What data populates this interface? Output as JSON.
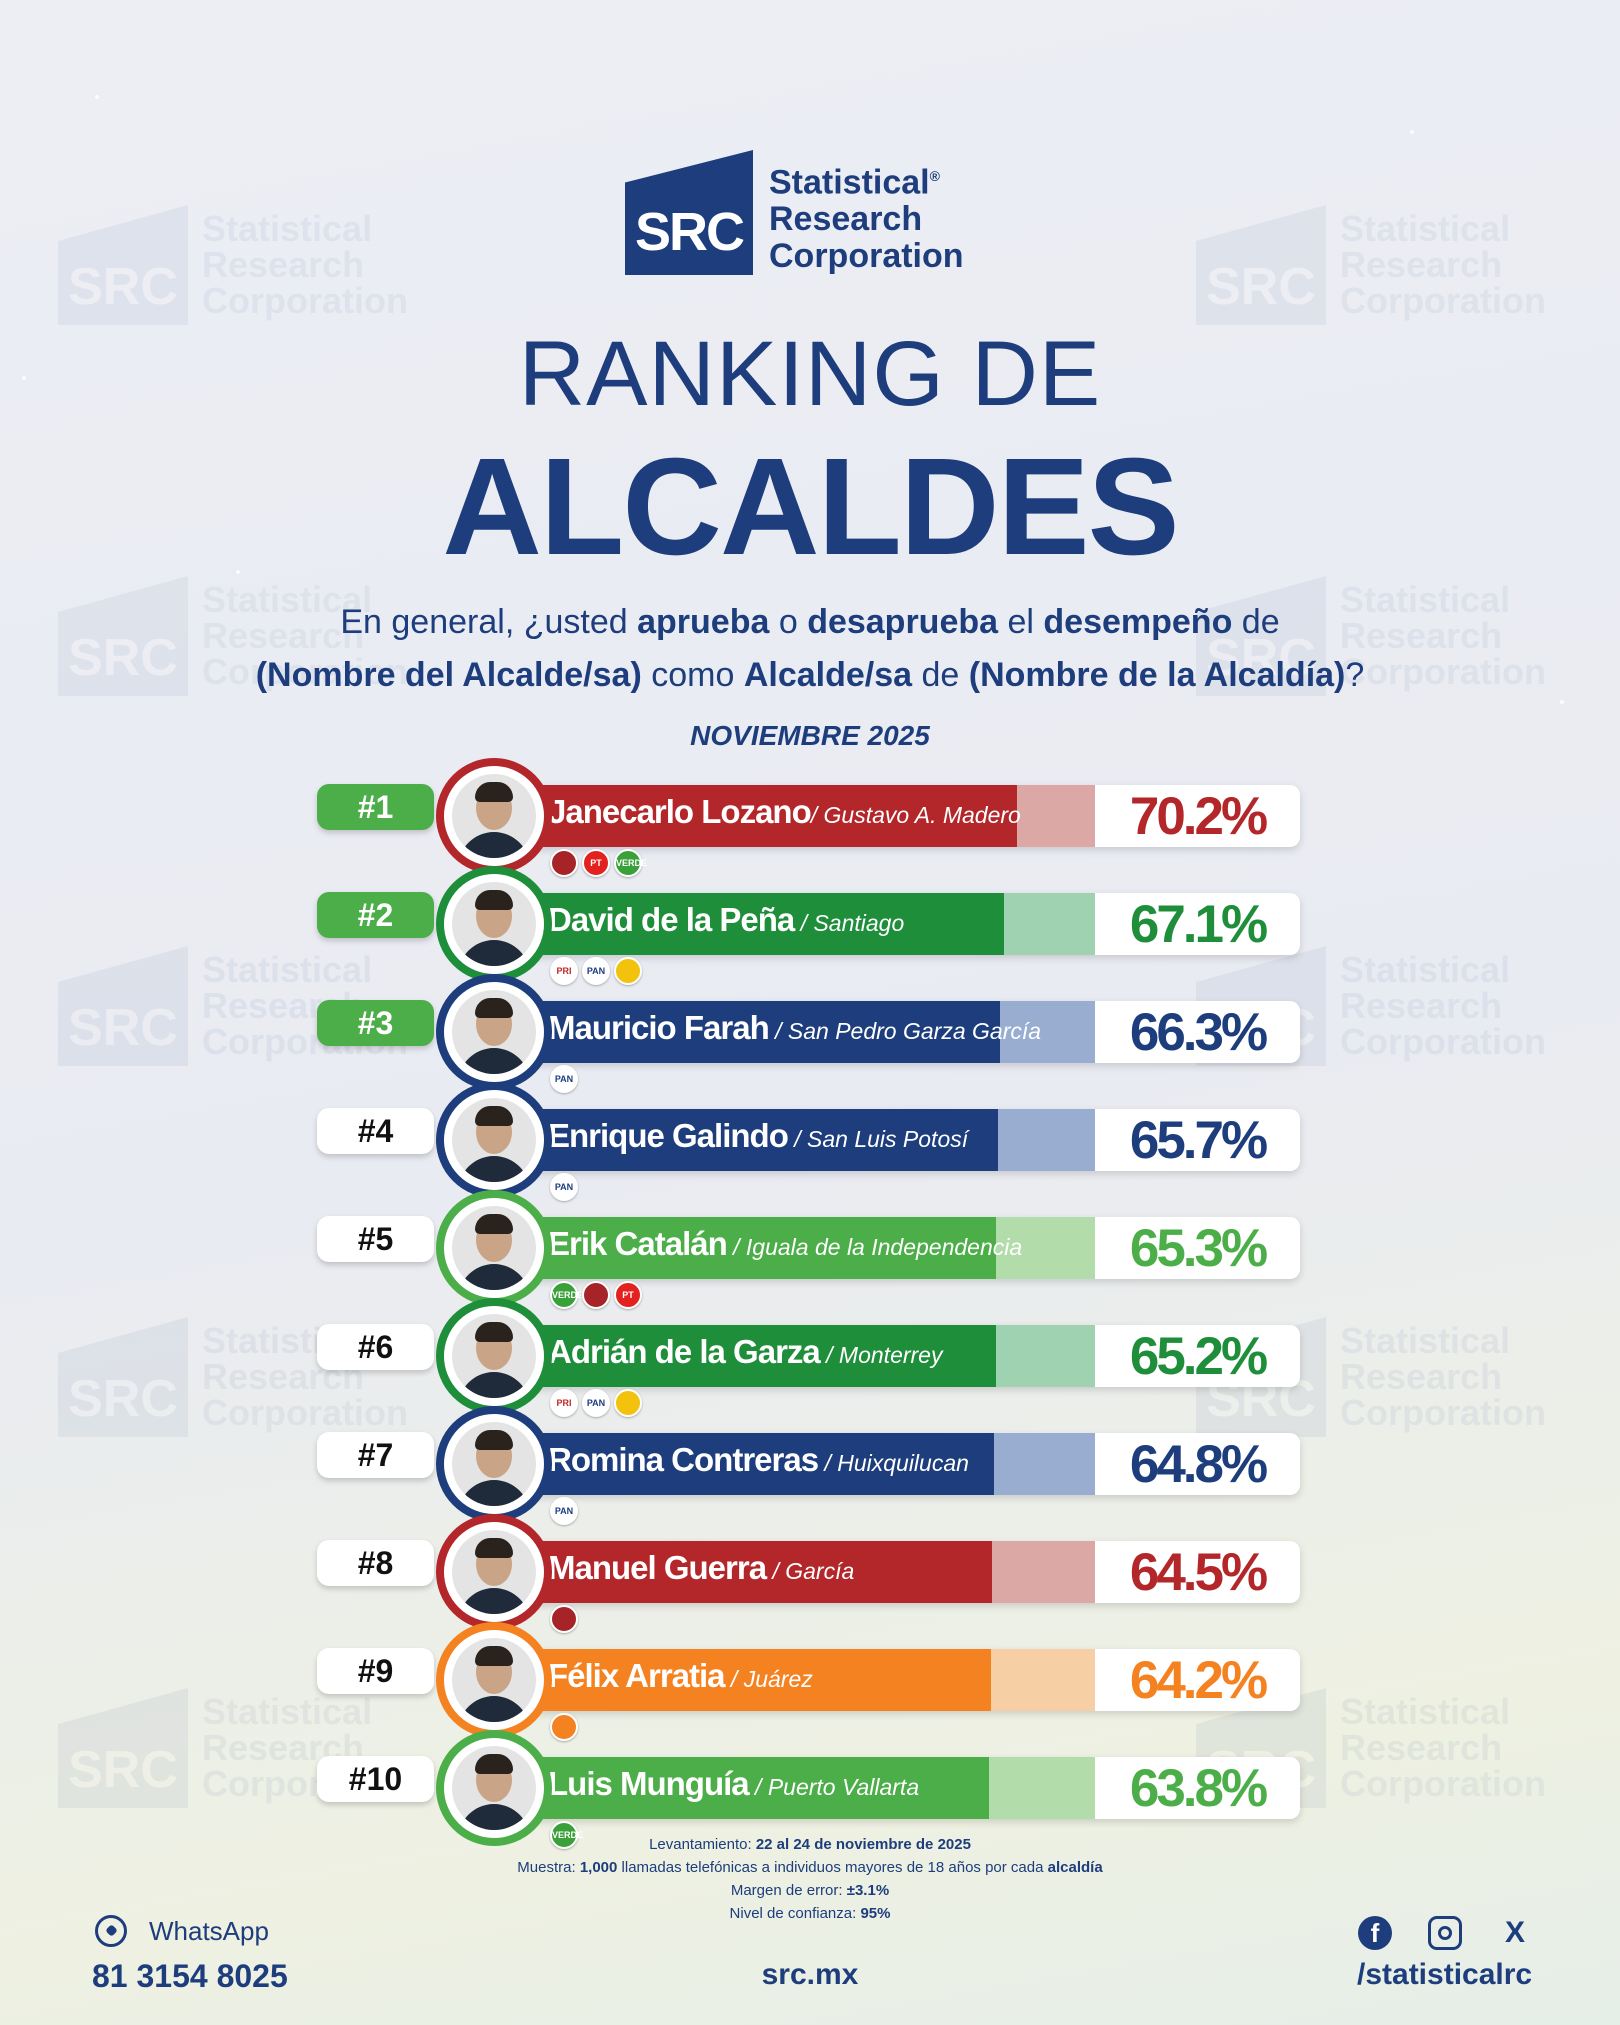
{
  "logo": {
    "badge": "SRC",
    "line1": "Statistical",
    "reg": "®",
    "line2": "Research",
    "line3": "Corporation"
  },
  "watermark": {
    "badge": "SRC",
    "line1": "Statistical",
    "line2": "Research",
    "line3": "Corporation"
  },
  "title": {
    "line1": "RANKING DE",
    "line2": "ALCALDES"
  },
  "question": {
    "p1": "En general, ¿usted ",
    "b1": "aprueba",
    "p2": " o ",
    "b2": "desaprueba",
    "p3": " el ",
    "b3": "desempeño",
    "p4": " de",
    "b4": "(Nombre del Alcalde/sa)",
    "p5": " como ",
    "b5": "Alcalde/sa",
    "p6": " de ",
    "b6": "(Nombre de la Alcaldía)",
    "p7": "?"
  },
  "month": "NOVIEMBRE 2025",
  "colors": {
    "morena_red": "#b3262a",
    "green_dark": "#1f8e3b",
    "green_light": "#4cae48",
    "blue": "#1d3d7c",
    "orange": "#f58220"
  },
  "chart_data": {
    "type": "bar",
    "title": "RANKING DE ALCALDES",
    "subtitle": "NOVIEMBRE 2025",
    "unit": "%",
    "ylim": [
      0,
      100
    ],
    "rows": [
      {
        "rank": "#1",
        "name": "Janecarlo Lozano",
        "city": "/ Gustavo A. Madero",
        "value": 70.2,
        "label": "70.2%",
        "color": "#b3262a",
        "light": "#dca8a6",
        "pct_color": "#b3262a",
        "top": true,
        "parties": [
          "morena",
          "pt",
          "verde"
        ]
      },
      {
        "rank": "#2",
        "name": "David de la Peña",
        "city": " / Santiago",
        "value": 67.1,
        "label": "67.1%",
        "color": "#1f8e3b",
        "light": "#9fd2b1",
        "pct_color": "#1f8e3b",
        "top": true,
        "parties": [
          "pri",
          "pan",
          "prd"
        ]
      },
      {
        "rank": "#3",
        "name": "Mauricio Farah",
        "city": " / San Pedro Garza García",
        "value": 66.3,
        "label": "66.3%",
        "color": "#1d3d7c",
        "light": "#98add0",
        "pct_color": "#1d3d7c",
        "top": true,
        "parties": [
          "pan"
        ]
      },
      {
        "rank": "#4",
        "name": "Enrique Galindo",
        "city": " / San Luis Potosí",
        "value": 65.7,
        "label": "65.7%",
        "color": "#1d3d7c",
        "light": "#98add0",
        "pct_color": "#1d3d7c",
        "top": false,
        "parties": [
          "pan"
        ]
      },
      {
        "rank": "#5",
        "name": "Erik Catalán",
        "city": " / Iguala de la Independencia",
        "value": 65.3,
        "label": "65.3%",
        "color": "#4cae48",
        "light": "#b3dcab",
        "pct_color": "#4cae48",
        "top": false,
        "parties": [
          "verde",
          "morena",
          "pt"
        ]
      },
      {
        "rank": "#6",
        "name": "Adrián de la Garza",
        "city": " / Monterrey",
        "value": 65.2,
        "label": "65.2%",
        "color": "#1f8e3b",
        "light": "#9fd2b1",
        "pct_color": "#1f8e3b",
        "top": false,
        "parties": [
          "pri",
          "pan",
          "prd"
        ]
      },
      {
        "rank": "#7",
        "name": "Romina Contreras",
        "city": " / Huixquilucan",
        "value": 64.8,
        "label": "64.8%",
        "color": "#1d3d7c",
        "light": "#98add0",
        "pct_color": "#1d3d7c",
        "top": false,
        "parties": [
          "pan"
        ]
      },
      {
        "rank": "#8",
        "name": "Manuel Guerra",
        "city": " / García",
        "value": 64.5,
        "label": "64.5%",
        "color": "#b3262a",
        "light": "#dca8a6",
        "pct_color": "#b3262a",
        "top": false,
        "parties": [
          "morena"
        ]
      },
      {
        "rank": "#9",
        "name": "Félix Arratia",
        "city": " / Juárez",
        "value": 64.2,
        "label": "64.2%",
        "color": "#f58220",
        "light": "#f7cfa4",
        "pct_color": "#f58220",
        "top": false,
        "parties": [
          "mc"
        ]
      },
      {
        "rank": "#10",
        "name": "Luis Munguía",
        "city": " / Puerto Vallarta",
        "value": 63.8,
        "label": "63.8%",
        "color": "#4cae48",
        "light": "#b3dcab",
        "pct_color": "#4cae48",
        "top": false,
        "parties": [
          "verde"
        ]
      }
    ]
  },
  "party_labels": {
    "morena": "",
    "pt": "PT",
    "verde": "VERDE",
    "pri": "PRI",
    "pan": "PAN",
    "prd": "",
    "mc": ""
  },
  "footnote": {
    "l1a": "Levantamiento: ",
    "l1b": "22 al 24 de noviembre de 2025",
    "l2a": "Muestra: ",
    "l2b": "1,000",
    "l2c": " llamadas telefónicas a individuos mayores de 18 años por cada ",
    "l2d": "alcaldía",
    "l3a": "Margen de error: ",
    "l3b": "±3.1%",
    "l4a": "Nivel de confianza: ",
    "l4b": "95%"
  },
  "contact": {
    "whatsapp_label": "WhatsApp",
    "phone": "81 3154 8025",
    "site": "src.mx",
    "handle": "/statisticalrc"
  },
  "icons": {
    "whatsapp": "whatsapp-icon",
    "facebook": "facebook-icon",
    "instagram": "instagram-icon",
    "x": "x-icon"
  },
  "social_glyphs": {
    "facebook": "f",
    "x": "X"
  }
}
